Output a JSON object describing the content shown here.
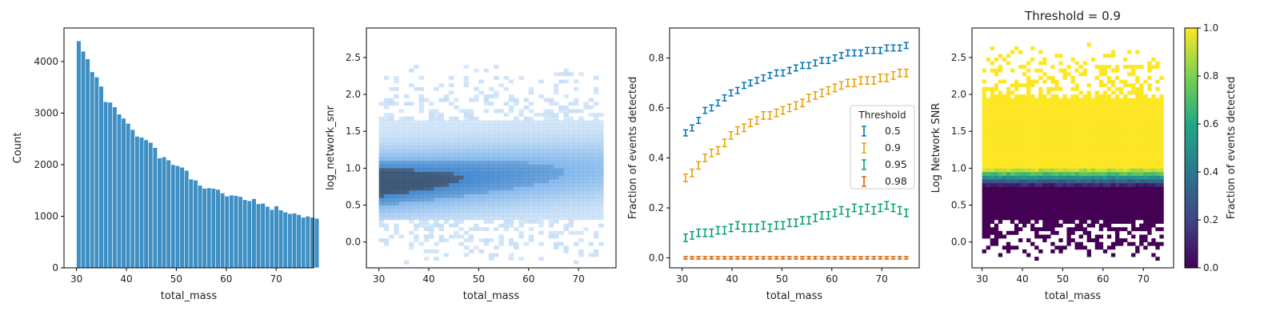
{
  "chart_data": [
    {
      "type": "bar",
      "xlabel": "total_mass",
      "ylabel": "Count",
      "xlim": [
        27.5,
        77.5
      ],
      "ylim": [
        0,
        4650
      ],
      "xticks": [
        30,
        40,
        50,
        60,
        70
      ],
      "yticks": [
        0,
        1000,
        2000,
        3000,
        4000
      ],
      "bin_start": 30,
      "bin_width": 0.9,
      "values": [
        4400,
        4200,
        4050,
        3800,
        3700,
        3520,
        3220,
        3210,
        3120,
        2980,
        2900,
        2800,
        2680,
        2550,
        2530,
        2480,
        2430,
        2330,
        2130,
        2150,
        2090,
        2000,
        1980,
        1950,
        1890,
        1720,
        1700,
        1600,
        1540,
        1550,
        1540,
        1520,
        1450,
        1390,
        1410,
        1400,
        1380,
        1320,
        1300,
        1340,
        1240,
        1250,
        1190,
        1130,
        1200,
        1120,
        1080,
        1050,
        1060,
        1030,
        980,
        1000,
        980,
        960
      ]
    },
    {
      "type": "heatmap",
      "xlabel": "total_mass",
      "ylabel": "log_network_snr",
      "xlim": [
        27.5,
        77.5
      ],
      "ylim": [
        -0.35,
        2.9
      ],
      "xticks": [
        30,
        40,
        50,
        60,
        70
      ],
      "yticks": [
        0.0,
        0.5,
        1.0,
        1.5,
        2.0,
        2.5
      ],
      "ytick_labels": [
        "0.0",
        "0.5",
        "1.0",
        "1.5",
        "2.0",
        "2.5"
      ],
      "description_values": {
        "x_range": [
          30,
          75
        ],
        "dense_core": [
          0.3,
          1.7
        ],
        "peak": [
          31,
          0.78
        ]
      }
    },
    {
      "type": "line",
      "xlabel": "total_mass",
      "ylabel": "Fraction of events detected",
      "xlim": [
        27.5,
        77.5
      ],
      "ylim": [
        -0.04,
        0.92
      ],
      "xticks": [
        30,
        40,
        50,
        60,
        70
      ],
      "yticks": [
        0.0,
        0.2,
        0.4,
        0.6,
        0.8
      ],
      "ytick_labels": [
        "0.0",
        "0.2",
        "0.4",
        "0.6",
        "0.8"
      ],
      "legend_title": "Threshold",
      "legend_position": "center-right",
      "x": [
        30.7,
        32.0,
        33.3,
        34.6,
        35.9,
        37.2,
        38.5,
        39.8,
        41.1,
        42.4,
        43.7,
        45.0,
        46.3,
        47.6,
        48.9,
        50.2,
        51.5,
        52.8,
        54.1,
        55.4,
        56.7,
        58.0,
        59.3,
        60.6,
        61.9,
        63.2,
        64.5,
        65.8,
        67.1,
        68.4,
        69.7,
        71.0,
        72.3,
        73.6,
        74.9
      ],
      "series": [
        {
          "name": "0.5",
          "color": "#0072B2",
          "values": [
            0.5,
            0.52,
            0.55,
            0.59,
            0.6,
            0.62,
            0.64,
            0.66,
            0.67,
            0.69,
            0.7,
            0.71,
            0.72,
            0.73,
            0.74,
            0.74,
            0.75,
            0.76,
            0.77,
            0.77,
            0.78,
            0.79,
            0.79,
            0.8,
            0.81,
            0.82,
            0.82,
            0.82,
            0.83,
            0.83,
            0.83,
            0.84,
            0.84,
            0.84,
            0.85
          ],
          "err": 0.012
        },
        {
          "name": "0.9",
          "color": "#E69F00",
          "values": [
            0.32,
            0.34,
            0.37,
            0.4,
            0.42,
            0.43,
            0.46,
            0.49,
            0.51,
            0.52,
            0.54,
            0.55,
            0.57,
            0.57,
            0.58,
            0.59,
            0.6,
            0.61,
            0.62,
            0.64,
            0.65,
            0.66,
            0.67,
            0.68,
            0.69,
            0.7,
            0.7,
            0.71,
            0.71,
            0.71,
            0.72,
            0.72,
            0.73,
            0.74,
            0.74
          ],
          "err": 0.015
        },
        {
          "name": "0.95",
          "color": "#009E73",
          "values": [
            0.08,
            0.09,
            0.1,
            0.1,
            0.1,
            0.11,
            0.11,
            0.12,
            0.13,
            0.12,
            0.12,
            0.12,
            0.13,
            0.12,
            0.13,
            0.13,
            0.14,
            0.14,
            0.15,
            0.15,
            0.16,
            0.17,
            0.17,
            0.18,
            0.19,
            0.18,
            0.2,
            0.19,
            0.2,
            0.19,
            0.2,
            0.21,
            0.2,
            0.19,
            0.18
          ],
          "err": 0.015
        },
        {
          "name": "0.98",
          "color": "#D55E00",
          "values": [
            0.0,
            0.0,
            0.0,
            0.0,
            0.0,
            0.0,
            0.0,
            0.0,
            0.0,
            0.0,
            0.0,
            0.0,
            0.0,
            0.0,
            0.0,
            0.0,
            0.0,
            0.0,
            0.0,
            0.0,
            0.0,
            0.0,
            0.0,
            0.0,
            0.0,
            0.0,
            0.0,
            0.0,
            0.0,
            0.0,
            0.0,
            0.0,
            0.0,
            0.0,
            0.0
          ],
          "err": 0.005
        }
      ]
    },
    {
      "type": "heatmap",
      "title": "Threshold = 0.9",
      "xlabel": "total_mass",
      "ylabel": "Log Network SNR",
      "xlim": [
        27.5,
        77.5
      ],
      "ylim": [
        -0.35,
        2.9
      ],
      "xticks": [
        30,
        40,
        50,
        60,
        70
      ],
      "yticks": [
        0.0,
        0.5,
        1.0,
        1.5,
        2.0,
        2.5
      ],
      "ytick_labels": [
        "0.0",
        "0.5",
        "1.0",
        "1.5",
        "2.0",
        "2.5"
      ],
      "colorbar_label": "Fraction of events detected",
      "colorbar_ticks": [
        0.0,
        0.2,
        0.4,
        0.6,
        0.8,
        1.0
      ],
      "colorbar_tick_labels": [
        "0.0",
        "0.2",
        "0.4",
        "0.6",
        "0.8",
        "1.0"
      ],
      "colormap": "viridis",
      "transition_range": [
        0.75,
        1.0
      ]
    }
  ]
}
